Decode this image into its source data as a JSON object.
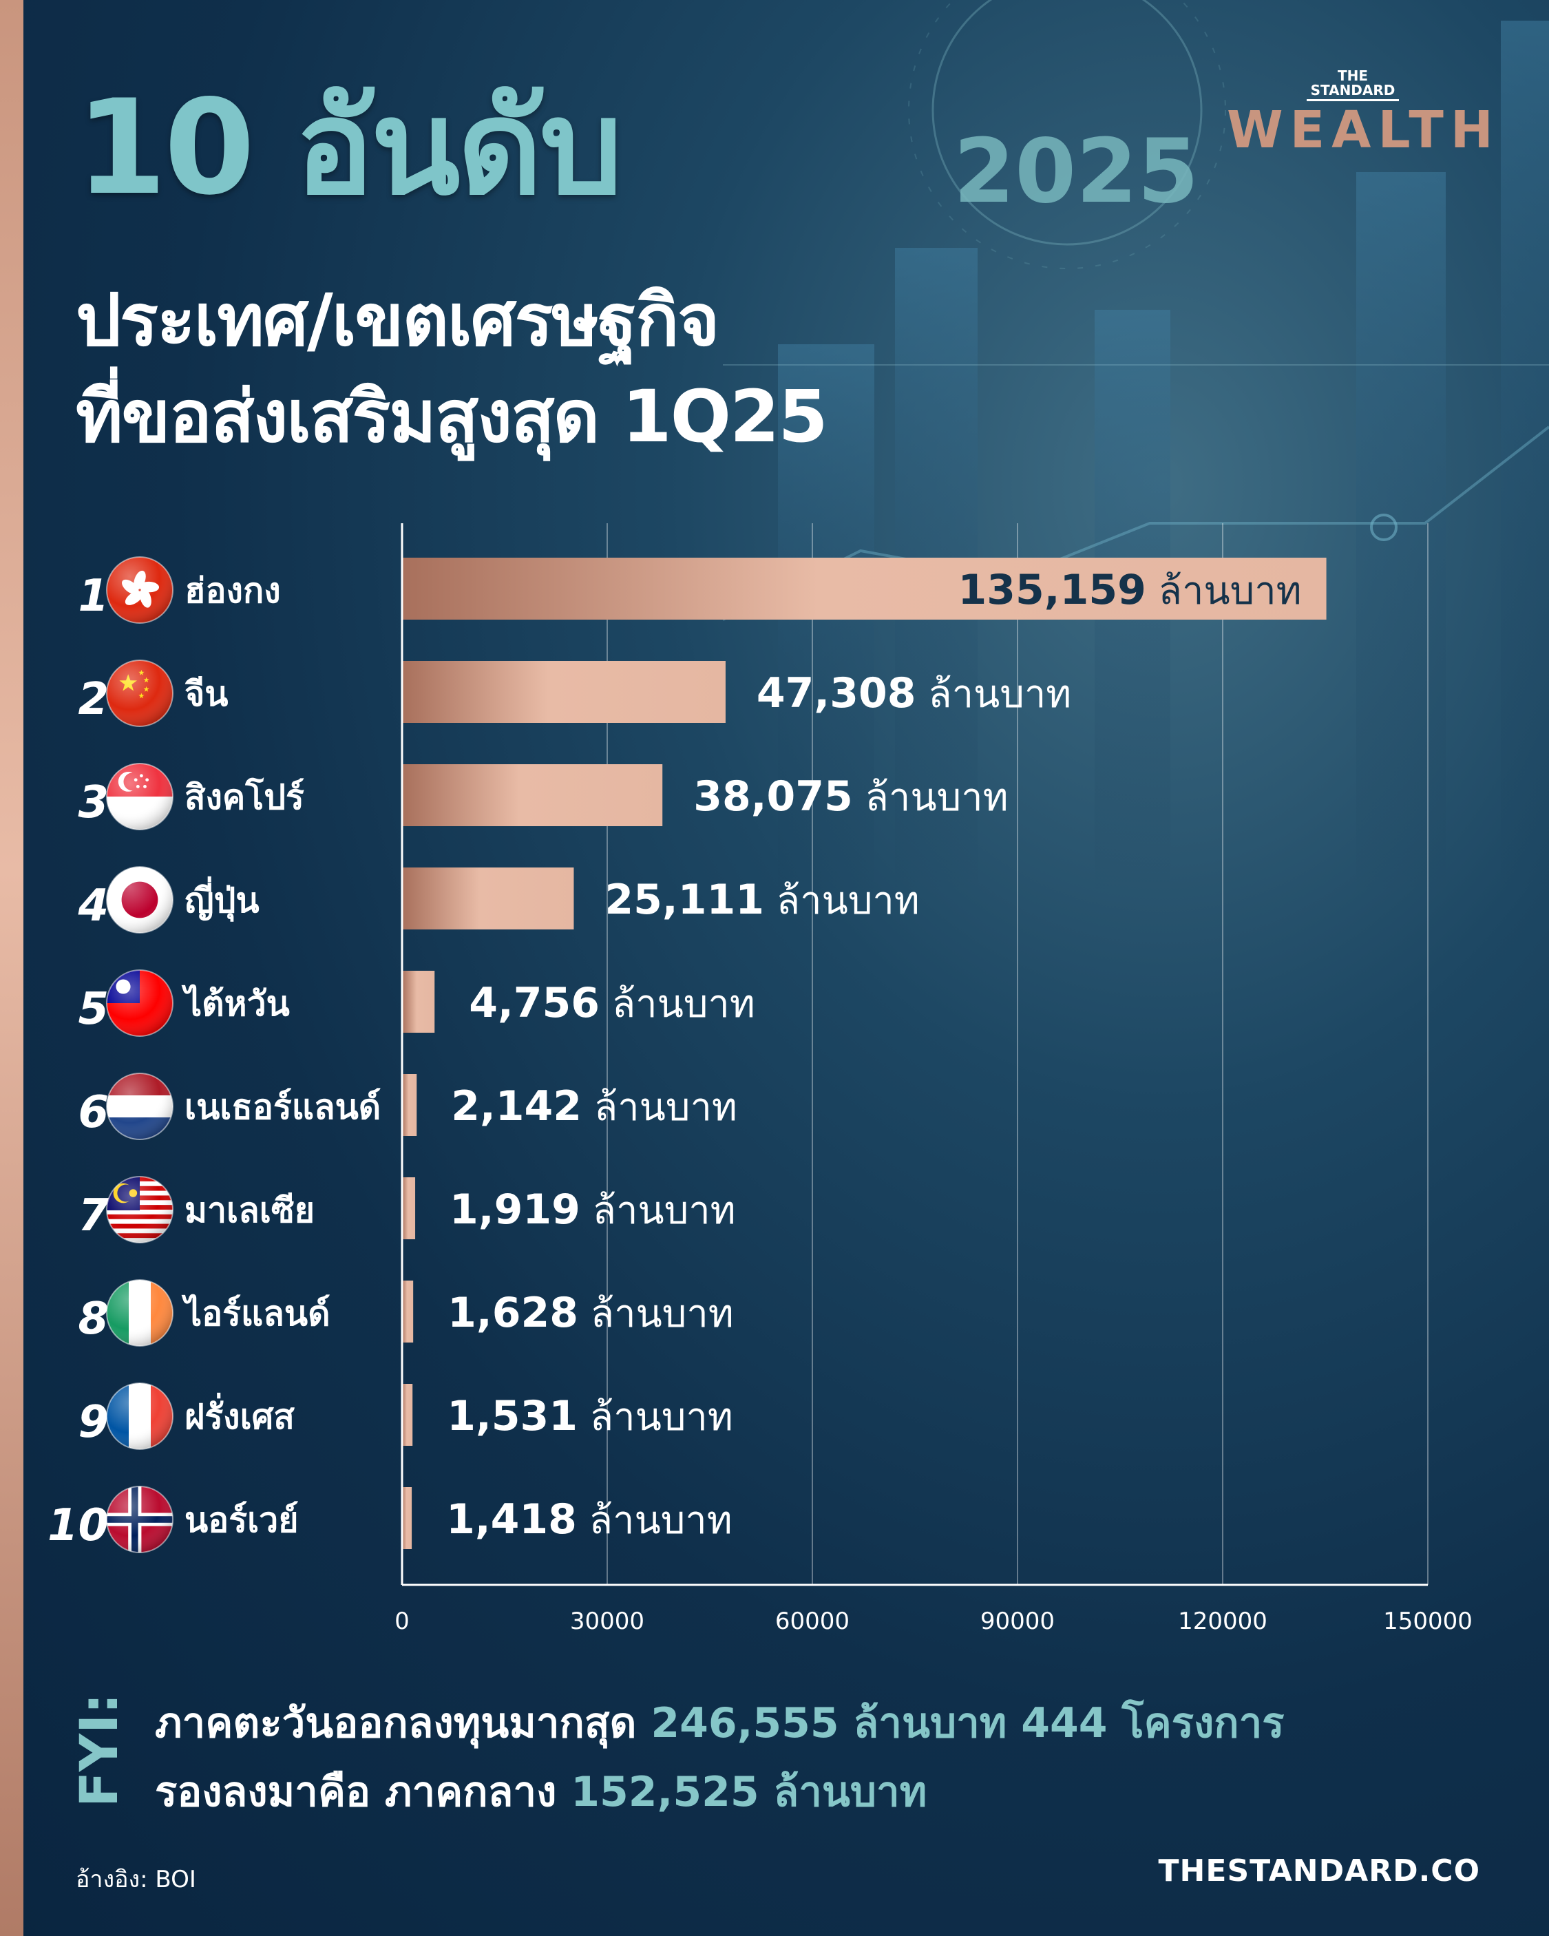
{
  "header": {
    "title": "10 อันดับ",
    "subtitle_line1": "ประเทศ/เขตเศรษฐกิจ",
    "subtitle_line2": "ที่ขอส่งเสริมสูงสุด 1Q25",
    "year": "2025",
    "brand_top_1": "THE",
    "brand_top_2": "STANDARD",
    "brand_main": "WEALTH"
  },
  "chart_data": {
    "type": "bar",
    "orientation": "horizontal",
    "categories": [
      "ฮ่องกง",
      "จีน",
      "สิงคโปร์",
      "ญี่ปุ่น",
      "ไต้หวัน",
      "เนเธอร์แลนด์",
      "มาเลเซีย",
      "ไอร์แลนด์",
      "ฝรั่งเศส",
      "นอร์เวย์"
    ],
    "ranks": [
      "1",
      "2",
      "3",
      "4",
      "5",
      "6",
      "7",
      "8",
      "9",
      "10"
    ],
    "flags": [
      "hong-kong-flag",
      "china-flag",
      "singapore-flag",
      "japan-flag",
      "taiwan-flag",
      "netherlands-flag",
      "malaysia-flag",
      "ireland-flag",
      "france-flag",
      "norway-flag"
    ],
    "values": [
      135159,
      47308,
      38075,
      25111,
      4756,
      2142,
      1919,
      1628,
      1531,
      1418
    ],
    "value_labels": [
      "135,159",
      "47,308",
      "38,075",
      "25,111",
      "4,756",
      "2,142",
      "1,919",
      "1,628",
      "1,531",
      "1,418"
    ],
    "unit": "ล้านบาท",
    "xlim": [
      0,
      150000
    ],
    "xticks": [
      "0",
      "30000",
      "60000",
      "90000",
      "120000",
      "150000"
    ],
    "grid": true,
    "bar_color_start": "#a8705c",
    "bar_color_end": "#e8bba6"
  },
  "fyi": {
    "label": "FYI:",
    "line1_text": "ภาคตะวันออกลงทุนมากสุด",
    "line1_highlight": "246,555 ล้านบาท 444 โครงการ",
    "line2_text": "รองลงมาคือ ภาคกลาง",
    "line2_highlight": "152,525 ล้านบาท"
  },
  "footer": {
    "source": "อ้างอิง: BOI",
    "site": "THESTANDARD.CO"
  },
  "colors": {
    "accent_teal": "#7fc5c9",
    "accent_copper": "#c8957f",
    "background": "#0f2f4b"
  }
}
